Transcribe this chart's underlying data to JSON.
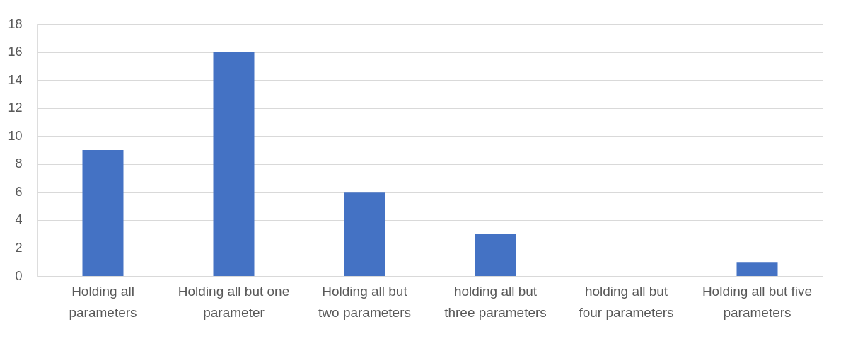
{
  "chart_data": {
    "type": "bar",
    "categories": [
      "Holding all\nparameters",
      "Holding all but one\nparameter",
      "Holding all but\ntwo parameters",
      "holding all but\nthree parameters",
      "holding all but\nfour parameters",
      "Holding all but five\nparameters"
    ],
    "values": [
      9,
      16,
      6,
      3,
      0,
      1
    ],
    "color": "#4472c4",
    "ylim": [
      0,
      18
    ],
    "yticks": [
      0,
      2,
      4,
      6,
      8,
      10,
      12,
      14,
      16,
      18
    ],
    "grid": "y"
  }
}
